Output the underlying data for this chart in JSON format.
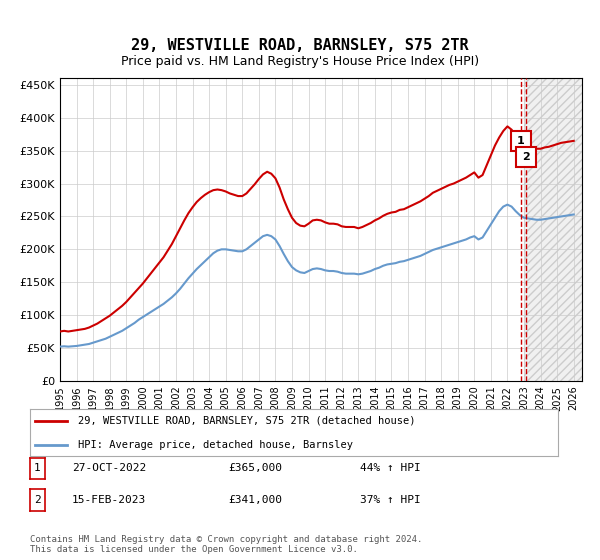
{
  "title": "29, WESTVILLE ROAD, BARNSLEY, S75 2TR",
  "subtitle": "Price paid vs. HM Land Registry's House Price Index (HPI)",
  "ylim": [
    0,
    460000
  ],
  "yticks": [
    0,
    50000,
    100000,
    150000,
    200000,
    250000,
    300000,
    350000,
    400000,
    450000
  ],
  "xlim_start": 1995.0,
  "xlim_end": 2026.5,
  "xticks": [
    1995,
    1996,
    1997,
    1998,
    1999,
    2000,
    2001,
    2002,
    2003,
    2004,
    2005,
    2006,
    2007,
    2008,
    2009,
    2010,
    2011,
    2012,
    2013,
    2014,
    2015,
    2016,
    2017,
    2018,
    2019,
    2020,
    2021,
    2022,
    2023,
    2024,
    2025,
    2026
  ],
  "hpi_color": "#6699cc",
  "price_color": "#cc0000",
  "sale1_date": "27-OCT-2022",
  "sale1_price": 365000,
  "sale1_pct": "44%",
  "sale1_x": 2022.82,
  "sale2_date": "15-FEB-2023",
  "sale2_price": 341000,
  "sale2_pct": "37%",
  "sale2_x": 2023.12,
  "legend_label_price": "29, WESTVILLE ROAD, BARNSLEY, S75 2TR (detached house)",
  "legend_label_hpi": "HPI: Average price, detached house, Barnsley",
  "footnote": "Contains HM Land Registry data © Crown copyright and database right 2024.\nThis data is licensed under the Open Government Licence v3.0.",
  "dashed_vline_color": "#cc0000",
  "bg_color": "#ffffff",
  "grid_color": "#cccccc",
  "hpi_data_x": [
    1995.0,
    1995.25,
    1995.5,
    1995.75,
    1996.0,
    1996.25,
    1996.5,
    1996.75,
    1997.0,
    1997.25,
    1997.5,
    1997.75,
    1998.0,
    1998.25,
    1998.5,
    1998.75,
    1999.0,
    1999.25,
    1999.5,
    1999.75,
    2000.0,
    2000.25,
    2000.5,
    2000.75,
    2001.0,
    2001.25,
    2001.5,
    2001.75,
    2002.0,
    2002.25,
    2002.5,
    2002.75,
    2003.0,
    2003.25,
    2003.5,
    2003.75,
    2004.0,
    2004.25,
    2004.5,
    2004.75,
    2005.0,
    2005.25,
    2005.5,
    2005.75,
    2006.0,
    2006.25,
    2006.5,
    2006.75,
    2007.0,
    2007.25,
    2007.5,
    2007.75,
    2008.0,
    2008.25,
    2008.5,
    2008.75,
    2009.0,
    2009.25,
    2009.5,
    2009.75,
    2010.0,
    2010.25,
    2010.5,
    2010.75,
    2011.0,
    2011.25,
    2011.5,
    2011.75,
    2012.0,
    2012.25,
    2012.5,
    2012.75,
    2013.0,
    2013.25,
    2013.5,
    2013.75,
    2014.0,
    2014.25,
    2014.5,
    2014.75,
    2015.0,
    2015.25,
    2015.5,
    2015.75,
    2016.0,
    2016.25,
    2016.5,
    2016.75,
    2017.0,
    2017.25,
    2017.5,
    2017.75,
    2018.0,
    2018.25,
    2018.5,
    2018.75,
    2019.0,
    2019.25,
    2019.5,
    2019.75,
    2020.0,
    2020.25,
    2020.5,
    2020.75,
    2021.0,
    2021.25,
    2021.5,
    2021.75,
    2022.0,
    2022.25,
    2022.5,
    2022.75,
    2023.0,
    2023.25,
    2023.5,
    2023.75,
    2024.0,
    2024.25,
    2024.5,
    2024.75,
    2025.0,
    2025.25,
    2025.5,
    2025.75,
    2026.0
  ],
  "hpi_data_y": [
    52000,
    52500,
    52000,
    52500,
    53000,
    54000,
    55000,
    56000,
    58000,
    60000,
    62000,
    64000,
    67000,
    70000,
    73000,
    76000,
    80000,
    84000,
    88000,
    93000,
    97000,
    101000,
    105000,
    109000,
    113000,
    117000,
    122000,
    127000,
    133000,
    140000,
    148000,
    156000,
    163000,
    170000,
    176000,
    182000,
    188000,
    194000,
    198000,
    200000,
    200000,
    199000,
    198000,
    197000,
    197000,
    200000,
    205000,
    210000,
    215000,
    220000,
    222000,
    220000,
    215000,
    205000,
    193000,
    182000,
    173000,
    168000,
    165000,
    164000,
    167000,
    170000,
    171000,
    170000,
    168000,
    167000,
    167000,
    166000,
    164000,
    163000,
    163000,
    163000,
    162000,
    163000,
    165000,
    167000,
    170000,
    172000,
    175000,
    177000,
    178000,
    179000,
    181000,
    182000,
    184000,
    186000,
    188000,
    190000,
    193000,
    196000,
    199000,
    201000,
    203000,
    205000,
    207000,
    209000,
    211000,
    213000,
    215000,
    218000,
    220000,
    215000,
    218000,
    228000,
    238000,
    248000,
    258000,
    265000,
    268000,
    265000,
    258000,
    252000,
    248000,
    247000,
    246000,
    245000,
    245000,
    246000,
    247000,
    248000,
    249000,
    250000,
    251000,
    252000,
    253000
  ],
  "price_data_x": [
    1995.0,
    1995.25,
    1995.5,
    1995.75,
    1996.0,
    1996.25,
    1996.5,
    1996.75,
    1997.0,
    1997.25,
    1997.5,
    1997.75,
    1998.0,
    1998.25,
    1998.5,
    1998.75,
    1999.0,
    1999.25,
    1999.5,
    1999.75,
    2000.0,
    2000.25,
    2000.5,
    2000.75,
    2001.0,
    2001.25,
    2001.5,
    2001.75,
    2002.0,
    2002.25,
    2002.5,
    2002.75,
    2003.0,
    2003.25,
    2003.5,
    2003.75,
    2004.0,
    2004.25,
    2004.5,
    2004.75,
    2005.0,
    2005.25,
    2005.5,
    2005.75,
    2006.0,
    2006.25,
    2006.5,
    2006.75,
    2007.0,
    2007.25,
    2007.5,
    2007.75,
    2008.0,
    2008.25,
    2008.5,
    2008.75,
    2009.0,
    2009.25,
    2009.5,
    2009.75,
    2010.0,
    2010.25,
    2010.5,
    2010.75,
    2011.0,
    2011.25,
    2011.5,
    2011.75,
    2012.0,
    2012.25,
    2012.5,
    2012.75,
    2013.0,
    2013.25,
    2013.5,
    2013.75,
    2014.0,
    2014.25,
    2014.5,
    2014.75,
    2015.0,
    2015.25,
    2015.5,
    2015.75,
    2016.0,
    2016.25,
    2016.5,
    2016.75,
    2017.0,
    2017.25,
    2017.5,
    2017.75,
    2018.0,
    2018.25,
    2018.5,
    2018.75,
    2019.0,
    2019.25,
    2019.5,
    2019.75,
    2020.0,
    2020.25,
    2020.5,
    2020.75,
    2021.0,
    2021.25,
    2021.5,
    2021.75,
    2022.0,
    2022.25,
    2022.5,
    2022.75,
    2023.0,
    2023.25,
    2023.5,
    2023.75,
    2024.0,
    2024.25,
    2024.5,
    2024.75,
    2025.0,
    2025.25,
    2025.5,
    2025.75,
    2026.0
  ],
  "price_data_y": [
    75000,
    76000,
    75000,
    76000,
    77000,
    78000,
    79000,
    81000,
    84000,
    87000,
    91000,
    95000,
    99000,
    104000,
    109000,
    114000,
    120000,
    127000,
    134000,
    141000,
    148000,
    156000,
    164000,
    172000,
    180000,
    188000,
    198000,
    208000,
    220000,
    232000,
    244000,
    255000,
    264000,
    272000,
    278000,
    283000,
    287000,
    290000,
    291000,
    290000,
    288000,
    285000,
    283000,
    281000,
    281000,
    285000,
    292000,
    299000,
    307000,
    314000,
    318000,
    315000,
    308000,
    294000,
    276000,
    261000,
    248000,
    240000,
    236000,
    235000,
    239000,
    244000,
    245000,
    244000,
    241000,
    239000,
    239000,
    238000,
    235000,
    234000,
    234000,
    234000,
    232000,
    234000,
    237000,
    240000,
    244000,
    247000,
    251000,
    254000,
    256000,
    257000,
    260000,
    261000,
    264000,
    267000,
    270000,
    273000,
    277000,
    281000,
    286000,
    289000,
    292000,
    295000,
    298000,
    300000,
    303000,
    306000,
    309000,
    313000,
    317000,
    309000,
    313000,
    328000,
    343000,
    358000,
    370000,
    380000,
    387000,
    382000,
    373000,
    364000,
    358000,
    356000,
    354000,
    353000,
    353000,
    355000,
    356000,
    358000,
    360000,
    362000,
    363000,
    364000,
    365000
  ]
}
